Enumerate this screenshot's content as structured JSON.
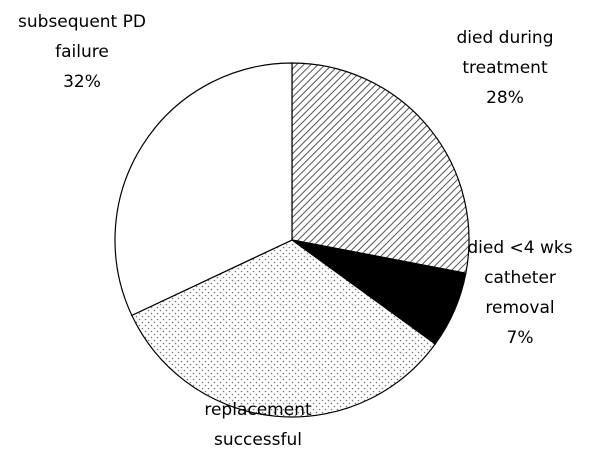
{
  "chart_data": {
    "type": "pie",
    "categories": [
      [
        "died during",
        "treatment"
      ],
      [
        "died <4 wks",
        "catheter",
        "removal"
      ],
      [
        "replacement",
        "successful"
      ],
      [
        "subsequent PD",
        "failure"
      ]
    ],
    "values": [
      28,
      7,
      33,
      32
    ],
    "value_labels": [
      "28%",
      "7%",
      null,
      "32%"
    ],
    "colors": [
      "hatch",
      "#000000",
      "dots",
      "#ffffff"
    ]
  }
}
